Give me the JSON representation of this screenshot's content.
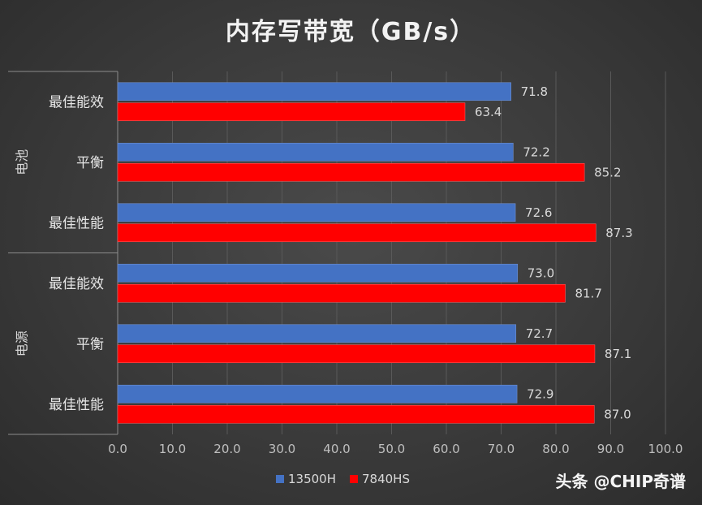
{
  "chart_data": {
    "type": "bar",
    "orientation": "horizontal",
    "title": "内存写带宽（GB/s）",
    "groups": [
      {
        "label": "电池",
        "categories": [
          "最佳能效",
          "平衡",
          "最佳性能"
        ]
      },
      {
        "label": "电源",
        "categories": [
          "最佳能效",
          "平衡",
          "最佳性能"
        ]
      }
    ],
    "series": [
      {
        "name": "13500H",
        "color": "#4472c4",
        "values": [
          71.8,
          72.2,
          72.6,
          73.0,
          72.7,
          72.9
        ]
      },
      {
        "name": "7840HS",
        "color": "#ff0000",
        "values": [
          63.4,
          85.2,
          87.3,
          81.7,
          87.1,
          87.0
        ]
      }
    ],
    "data_labels": {
      "13500H": [
        "71.8",
        "72.2",
        "72.6",
        "73.0",
        "72.7",
        "72.9"
      ],
      "7840HS": [
        "63.4",
        "85.2",
        "87.3",
        "81.7",
        "87.1",
        "87.0"
      ]
    },
    "xlim": [
      0,
      100
    ],
    "xticks": [
      0,
      10,
      20,
      30,
      40,
      50,
      60,
      70,
      80,
      90,
      100
    ],
    "xtick_labels": [
      "0.0",
      "10.0",
      "20.0",
      "30.0",
      "40.0",
      "50.0",
      "60.0",
      "70.0",
      "80.0",
      "90.0",
      "100.0"
    ],
    "grid": true,
    "legend": "bottom"
  },
  "watermark": "头条 @CHIP奇谱"
}
